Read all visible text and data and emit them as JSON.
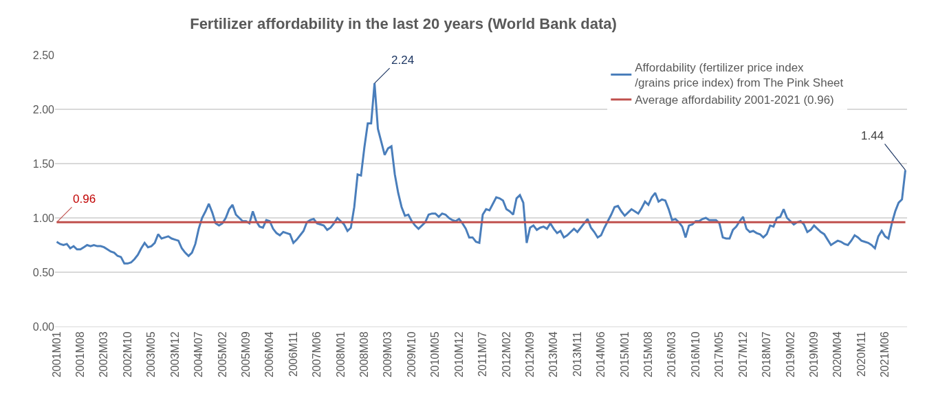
{
  "chart_data": {
    "type": "line",
    "title": "Fertilizer affordability in the last 20 years (World Bank data)",
    "categories": [
      "2001M01",
      null,
      null,
      null,
      null,
      null,
      null,
      "2001M08",
      null,
      null,
      null,
      null,
      null,
      null,
      "2002M03",
      null,
      null,
      null,
      null,
      null,
      null,
      "2002M10",
      null,
      null,
      null,
      null,
      null,
      null,
      "2003M05",
      null,
      null,
      null,
      null,
      null,
      null,
      "2003M12",
      null,
      null,
      null,
      null,
      null,
      null,
      "2004M07",
      null,
      null,
      null,
      null,
      null,
      null,
      "2005M02",
      null,
      null,
      null,
      null,
      null,
      null,
      "2005M09",
      null,
      null,
      null,
      null,
      null,
      null,
      "2006M04",
      null,
      null,
      null,
      null,
      null,
      null,
      "2006M11",
      null,
      null,
      null,
      null,
      null,
      null,
      "2007M06",
      null,
      null,
      null,
      null,
      null,
      null,
      "2008M01",
      null,
      null,
      null,
      null,
      null,
      null,
      "2008M08",
      null,
      null,
      null,
      null,
      null,
      null,
      "2009M03",
      null,
      null,
      null,
      null,
      null,
      null,
      "2009M10",
      null,
      null,
      null,
      null,
      null,
      null,
      "2010M05",
      null,
      null,
      null,
      null,
      null,
      null,
      "2010M12",
      null,
      null,
      null,
      null,
      null,
      null,
      "2011M07",
      null,
      null,
      null,
      null,
      null,
      null,
      "2012M02",
      null,
      null,
      null,
      null,
      null,
      null,
      "2012M09",
      null,
      null,
      null,
      null,
      null,
      null,
      "2013M04",
      null,
      null,
      null,
      null,
      null,
      null,
      "2013M11",
      null,
      null,
      null,
      null,
      null,
      null,
      "2014M06",
      null,
      null,
      null,
      null,
      null,
      null,
      "2015M01",
      null,
      null,
      null,
      null,
      null,
      null,
      "2015M08",
      null,
      null,
      null,
      null,
      null,
      null,
      "2016M03",
      null,
      null,
      null,
      null,
      null,
      null,
      "2016M10",
      null,
      null,
      null,
      null,
      null,
      null,
      "2017M05",
      null,
      null,
      null,
      null,
      null,
      null,
      "2017M12",
      null,
      null,
      null,
      null,
      null,
      null,
      "2018M07",
      null,
      null,
      null,
      null,
      null,
      null,
      "2019M02",
      null,
      null,
      null,
      null,
      null,
      null,
      "2019M09",
      null,
      null,
      null,
      null,
      null,
      null,
      "2020M04",
      null,
      null,
      null,
      null,
      null,
      null,
      "2020M11",
      null,
      null,
      null,
      null,
      null,
      null,
      "2021M06",
      null,
      null,
      null,
      null,
      null,
      null
    ],
    "series": [
      {
        "name": "Affordability (fertilizer price index /grains price index) from The Pink Sheet",
        "color": "#4a7ebb",
        "values": [
          0.78,
          0.76,
          0.75,
          0.76,
          0.72,
          0.74,
          0.71,
          0.71,
          0.73,
          0.75,
          0.74,
          0.75,
          0.74,
          0.74,
          0.73,
          0.71,
          0.69,
          0.68,
          0.65,
          0.64,
          0.58,
          0.58,
          0.59,
          0.62,
          0.66,
          0.72,
          0.77,
          0.73,
          0.74,
          0.77,
          0.85,
          0.81,
          0.82,
          0.83,
          0.81,
          0.8,
          0.79,
          0.72,
          0.68,
          0.65,
          0.68,
          0.76,
          0.9,
          1.0,
          1.06,
          1.13,
          1.05,
          0.95,
          0.93,
          0.95,
          1.0,
          1.08,
          1.12,
          1.03,
          1.0,
          0.97,
          0.97,
          0.95,
          1.06,
          0.97,
          0.92,
          0.91,
          0.98,
          0.97,
          0.9,
          0.86,
          0.84,
          0.87,
          0.86,
          0.85,
          0.77,
          0.8,
          0.84,
          0.88,
          0.96,
          0.98,
          0.99,
          0.95,
          0.94,
          0.93,
          0.89,
          0.91,
          0.95,
          1.0,
          0.97,
          0.94,
          0.88,
          0.91,
          1.1,
          1.4,
          1.39,
          1.65,
          1.87,
          1.87,
          2.24,
          1.82,
          1.7,
          1.58,
          1.64,
          1.66,
          1.4,
          1.23,
          1.1,
          1.02,
          1.03,
          0.97,
          0.93,
          0.9,
          0.93,
          0.96,
          1.03,
          1.04,
          1.04,
          1.01,
          1.04,
          1.03,
          1.0,
          0.98,
          0.97,
          0.99,
          0.95,
          0.9,
          0.82,
          0.82,
          0.78,
          0.77,
          1.03,
          1.08,
          1.07,
          1.13,
          1.19,
          1.18,
          1.16,
          1.08,
          1.06,
          1.03,
          1.18,
          1.21,
          1.14,
          0.77,
          0.91,
          0.93,
          0.89,
          0.91,
          0.92,
          0.9,
          0.95,
          0.9,
          0.86,
          0.88,
          0.82,
          0.84,
          0.87,
          0.9,
          0.87,
          0.91,
          0.95,
          0.99,
          0.91,
          0.87,
          0.82,
          0.84,
          0.91,
          0.97,
          1.03,
          1.1,
          1.11,
          1.06,
          1.02,
          1.05,
          1.08,
          1.06,
          1.04,
          1.09,
          1.15,
          1.12,
          1.19,
          1.23,
          1.15,
          1.17,
          1.16,
          1.08,
          0.98,
          0.99,
          0.96,
          0.92,
          0.82,
          0.93,
          0.94,
          0.97,
          0.97,
          0.99,
          1.0,
          0.98,
          0.98,
          0.98,
          0.95,
          0.82,
          0.81,
          0.81,
          0.89,
          0.92,
          0.97,
          1.01,
          0.9,
          0.87,
          0.88,
          0.86,
          0.85,
          0.82,
          0.85,
          0.93,
          0.92,
          1.0,
          1.01,
          1.08,
          1.0,
          0.97,
          0.94,
          0.96,
          0.97,
          0.94,
          0.87,
          0.89,
          0.93,
          0.9,
          0.87,
          0.85,
          0.8,
          0.75,
          0.77,
          0.79,
          0.78,
          0.76,
          0.75,
          0.79,
          0.84,
          0.82,
          0.79,
          0.78,
          0.77,
          0.75,
          0.72,
          0.83,
          0.88,
          0.83,
          0.81,
          0.95,
          1.06,
          1.14,
          1.17,
          1.44
        ],
        "value_labels": [
          null,
          null,
          null,
          null,
          null,
          null,
          null,
          null,
          null,
          null,
          null,
          null,
          null,
          null,
          null,
          null,
          null,
          null,
          null,
          null,
          null,
          null,
          null,
          null,
          null,
          null,
          null,
          null,
          null,
          null,
          null,
          null,
          null,
          null,
          null,
          null,
          null,
          null,
          null,
          null,
          null,
          null,
          null,
          null,
          null,
          null,
          null,
          null,
          null,
          null,
          null,
          null,
          null,
          null,
          null,
          null,
          null,
          null,
          null,
          null,
          null,
          null,
          null,
          null,
          null,
          null,
          null,
          null,
          null,
          null,
          null,
          null,
          null,
          null,
          null,
          null,
          null,
          null,
          null,
          null,
          null,
          null,
          null,
          null,
          null,
          null,
          null,
          null,
          null,
          null,
          null,
          null,
          null,
          null,
          "2.24",
          null,
          null,
          null,
          null,
          null,
          null,
          null,
          null,
          null,
          null,
          null,
          null,
          null,
          null,
          null,
          null,
          null,
          null,
          null,
          null,
          null,
          null,
          null,
          null,
          null,
          null,
          null,
          null,
          null,
          null,
          null,
          null,
          null,
          null,
          null,
          null,
          null,
          null,
          null,
          null,
          null,
          null,
          null,
          null,
          null,
          null,
          null,
          null,
          null,
          null,
          null,
          null,
          null,
          null,
          null,
          null,
          null,
          null,
          null,
          null,
          null,
          null,
          null,
          null,
          null,
          null,
          null,
          null,
          null,
          null,
          null,
          null,
          null,
          null,
          null,
          null,
          null,
          null,
          null,
          null,
          null,
          null,
          null,
          null,
          null,
          null,
          null,
          null,
          null,
          null,
          null,
          null,
          null,
          null,
          null,
          null,
          null,
          null,
          null,
          null,
          null,
          null,
          null,
          null,
          null,
          null,
          null,
          null,
          null,
          null,
          null,
          null,
          null,
          null,
          null,
          null,
          null,
          null,
          null,
          null,
          null,
          null,
          null,
          null,
          null,
          null,
          null,
          null,
          null,
          null,
          null,
          null,
          null,
          null,
          null,
          null,
          null,
          null,
          null,
          null,
          null,
          null,
          null,
          null,
          null,
          null,
          null,
          null,
          null,
          null,
          null,
          null,
          null,
          null,
          null,
          null,
          "1.44"
        ]
      },
      {
        "name": "Average affordability 2001-2021 (0.96)",
        "color": "#c0504d",
        "values": [
          0.96,
          0.96,
          0.96,
          0.96,
          0.96,
          0.96,
          0.96,
          0.96,
          0.96,
          0.96,
          0.96,
          0.96,
          0.96,
          0.96,
          0.96,
          0.96,
          0.96,
          0.96,
          0.96,
          0.96,
          0.96,
          0.96,
          0.96,
          0.96,
          0.96,
          0.96,
          0.96,
          0.96,
          0.96,
          0.96,
          0.96,
          0.96,
          0.96,
          0.96,
          0.96,
          0.96,
          0.96,
          0.96,
          0.96,
          0.96,
          0.96,
          0.96,
          0.96,
          0.96,
          0.96,
          0.96,
          0.96,
          0.96,
          0.96,
          0.96,
          0.96,
          0.96,
          0.96,
          0.96,
          0.96,
          0.96,
          0.96,
          0.96,
          0.96,
          0.96,
          0.96,
          0.96,
          0.96,
          0.96,
          0.96,
          0.96,
          0.96,
          0.96,
          0.96,
          0.96,
          0.96,
          0.96,
          0.96,
          0.96,
          0.96,
          0.96,
          0.96,
          0.96,
          0.96,
          0.96,
          0.96,
          0.96,
          0.96,
          0.96,
          0.96,
          0.96,
          0.96,
          0.96,
          0.96,
          0.96,
          0.96,
          0.96,
          0.96,
          0.96,
          0.96,
          0.96,
          0.96,
          0.96,
          0.96,
          0.96,
          0.96,
          0.96,
          0.96,
          0.96,
          0.96,
          0.96,
          0.96,
          0.96,
          0.96,
          0.96,
          0.96,
          0.96,
          0.96,
          0.96,
          0.96,
          0.96,
          0.96,
          0.96,
          0.96,
          0.96,
          0.96,
          0.96,
          0.96,
          0.96,
          0.96,
          0.96,
          0.96,
          0.96,
          0.96,
          0.96,
          0.96,
          0.96,
          0.96,
          0.96,
          0.96,
          0.96,
          0.96,
          0.96,
          0.96,
          0.96,
          0.96,
          0.96,
          0.96,
          0.96,
          0.96,
          0.96,
          0.96,
          0.96,
          0.96,
          0.96,
          0.96,
          0.96,
          0.96,
          0.96,
          0.96,
          0.96,
          0.96,
          0.96,
          0.96,
          0.96,
          0.96,
          0.96,
          0.96,
          0.96,
          0.96,
          0.96,
          0.96,
          0.96,
          0.96,
          0.96,
          0.96,
          0.96,
          0.96,
          0.96,
          0.96,
          0.96,
          0.96,
          0.96,
          0.96,
          0.96,
          0.96,
          0.96,
          0.96,
          0.96,
          0.96,
          0.96,
          0.96,
          0.96,
          0.96,
          0.96,
          0.96,
          0.96,
          0.96,
          0.96,
          0.96,
          0.96,
          0.96,
          0.96,
          0.96,
          0.96,
          0.96,
          0.96,
          0.96,
          0.96,
          0.96,
          0.96,
          0.96,
          0.96,
          0.96,
          0.96,
          0.96,
          0.96,
          0.96,
          0.96,
          0.96,
          0.96,
          0.96,
          0.96,
          0.96,
          0.96,
          0.96,
          0.96,
          0.96,
          0.96,
          0.96,
          0.96,
          0.96,
          0.96,
          0.96,
          0.96,
          0.96,
          0.96,
          0.96,
          0.96,
          0.96,
          0.96,
          0.96,
          0.96,
          0.96,
          0.96,
          0.96,
          0.96,
          0.96,
          0.96,
          0.96,
          0.96,
          0.96,
          0.96,
          0.96,
          0.96,
          0.96,
          0.96
        ],
        "value_labels": [
          "0.96",
          null,
          null,
          null,
          null,
          null,
          null,
          null,
          null,
          null,
          null,
          null,
          null,
          null,
          null,
          null,
          null,
          null,
          null,
          null,
          null,
          null,
          null,
          null,
          null,
          null,
          null,
          null,
          null,
          null,
          null,
          null,
          null,
          null,
          null,
          null,
          null,
          null,
          null,
          null,
          null,
          null,
          null,
          null,
          null,
          null,
          null,
          null,
          null,
          null,
          null,
          null,
          null,
          null,
          null,
          null,
          null,
          null,
          null,
          null,
          null,
          null,
          null,
          null,
          null,
          null,
          null,
          null,
          null,
          null,
          null,
          null,
          null,
          null,
          null,
          null,
          null,
          null,
          null,
          null,
          null,
          null,
          null,
          null,
          null,
          null,
          null,
          null,
          null,
          null,
          null,
          null,
          null,
          null,
          null,
          null,
          null,
          null,
          null,
          null,
          null,
          null,
          null,
          null,
          null,
          null,
          null,
          null,
          null,
          null,
          null,
          null,
          null,
          null,
          null,
          null,
          null,
          null,
          null,
          null,
          null,
          null,
          null,
          null,
          null,
          null,
          null,
          null,
          null,
          null,
          null,
          null,
          null,
          null,
          null,
          null,
          null,
          null,
          null,
          null,
          null,
          null,
          null,
          null,
          null,
          null,
          null,
          null,
          null,
          null,
          null,
          null,
          null,
          null,
          null,
          null,
          null,
          null,
          null,
          null,
          null,
          null,
          null,
          null,
          null,
          null,
          null,
          null,
          null,
          null,
          null,
          null,
          null,
          null,
          null,
          null,
          null,
          null,
          null,
          null,
          null,
          null,
          null,
          null,
          null,
          null,
          null,
          null,
          null,
          null,
          null,
          null,
          null,
          null,
          null,
          null,
          null,
          null,
          null,
          null,
          null,
          null,
          null,
          null,
          null,
          null,
          null,
          null,
          null,
          null,
          null,
          null,
          null,
          null,
          null,
          null,
          null,
          null,
          null,
          null,
          null,
          null,
          null,
          null,
          null,
          null,
          null,
          null,
          null,
          null,
          null,
          null,
          null,
          null,
          null,
          null,
          null,
          null,
          null,
          null,
          null,
          null,
          null,
          null,
          null,
          null,
          null,
          null,
          null,
          null,
          null,
          null
        ]
      }
    ],
    "ylim": [
      0,
      2.5
    ],
    "yticks": [
      {
        "value": 0,
        "label": "0.00"
      },
      {
        "value": 0.5,
        "label": "0.50"
      },
      {
        "value": 1,
        "label": "1.00"
      },
      {
        "value": 1.5,
        "label": "1.50"
      },
      {
        "value": 2,
        "label": "2.00"
      },
      {
        "value": 2.5,
        "label": "2.50"
      }
    ],
    "grid": "y",
    "legend": "top right",
    "marker": "none",
    "line_style": "solid"
  }
}
